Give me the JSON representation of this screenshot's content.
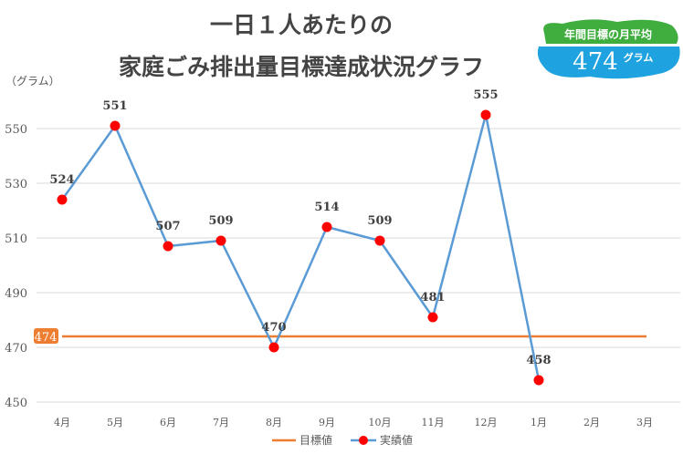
{
  "title_line1": "一日１人あたりの",
  "title_line2": "家庭ごみ排出量目標達成状況グラフ",
  "badge": {
    "label": "年間目標の月平均",
    "value": "474",
    "unit": "グラム"
  },
  "colors": {
    "actual_line": "#5b9bd5",
    "actual_marker": "#ff0000",
    "target": "#ed7d31"
  },
  "chart_data": {
    "type": "line",
    "ylabel": "（グラム）",
    "categories": [
      "4月",
      "5月",
      "6月",
      "7月",
      "8月",
      "9月",
      "10月",
      "11月",
      "12月",
      "1月",
      "2月",
      "3月"
    ],
    "ylim": [
      450,
      560
    ],
    "yticks": [
      450,
      470,
      490,
      510,
      530,
      550
    ],
    "grid": true,
    "legend_position": "bottom",
    "series": [
      {
        "name": "目標値",
        "values": [
          474,
          474,
          474,
          474,
          474,
          474,
          474,
          474,
          474,
          474,
          474,
          474
        ],
        "label": "474"
      },
      {
        "name": "実績値",
        "values": [
          524,
          551,
          507,
          509,
          470,
          514,
          509,
          481,
          555,
          458,
          null,
          null
        ]
      }
    ]
  }
}
